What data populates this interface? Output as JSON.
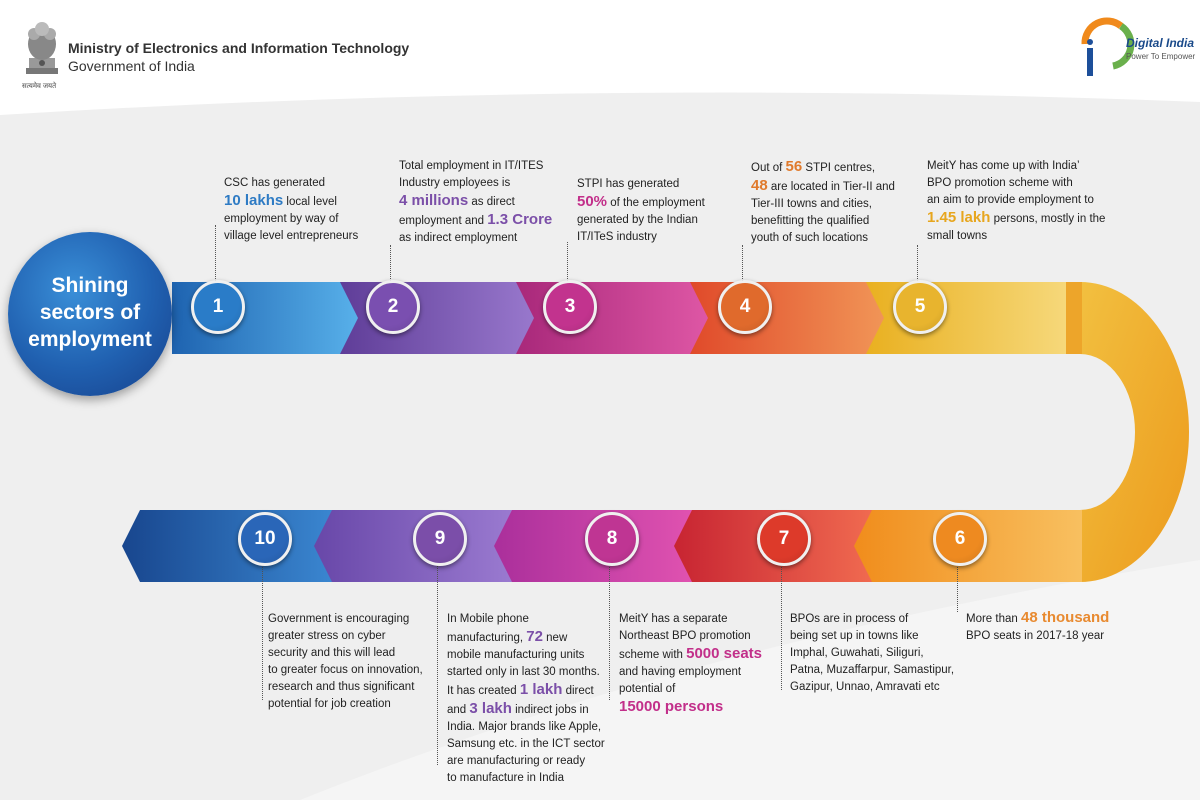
{
  "header": {
    "motto": "सत्यमेव जयते",
    "ministry": "Ministry of Electronics and Information Technology",
    "govt": "Government of India"
  },
  "logo": {
    "title": "Digital India",
    "tagline": "Power To Empower"
  },
  "hub": {
    "line1": "Shining",
    "line2": "sectors of",
    "line3": "employment"
  },
  "steps": [
    {
      "num": "1",
      "lines": [
        {
          "t": "CSC has generated"
        },
        {
          "p": [
            {
              "h": "10 lakhs"
            },
            {
              "t": " local level"
            }
          ]
        },
        {
          "t": "employment by way of"
        },
        {
          "t": "village level entrepreneurs"
        }
      ]
    },
    {
      "num": "2",
      "lines": [
        {
          "t": "Total employment in IT/ITES"
        },
        {
          "t": "Industry employees is"
        },
        {
          "p": [
            {
              "h": "4 millions"
            },
            {
              "t": " as direct"
            }
          ]
        },
        {
          "p": [
            {
              "t": "employment and "
            },
            {
              "h": "1.3 Crore"
            }
          ]
        },
        {
          "t": "as indirect employment"
        }
      ]
    },
    {
      "num": "3",
      "lines": [
        {
          "t": "STPI has generated"
        },
        {
          "p": [
            {
              "h": "50%"
            },
            {
              "t": " of the employment"
            }
          ]
        },
        {
          "t": "generated by the Indian"
        },
        {
          "t": "IT/ITeS industry"
        }
      ]
    },
    {
      "num": "4",
      "lines": [
        {
          "p": [
            {
              "t": "Out of "
            },
            {
              "h": "56"
            },
            {
              "t": " STPI centres,"
            }
          ]
        },
        {
          "p": [
            {
              "h": "48"
            },
            {
              "t": " are located in Tier-II and"
            }
          ]
        },
        {
          "t": "Tier-III towns and cities,"
        },
        {
          "t": "benefitting the qualified"
        },
        {
          "t": "youth of such locations"
        }
      ]
    },
    {
      "num": "5",
      "lines": [
        {
          "t": "MeitY has come up with India’"
        },
        {
          "t": "BPO promotion scheme with"
        },
        {
          "t": "an aim to provide employment to"
        },
        {
          "p": [
            {
              "h": "1.45 lakh"
            },
            {
              "t": " persons, mostly in the"
            }
          ]
        },
        {
          "t": "small towns"
        }
      ]
    },
    {
      "num": "6",
      "lines": [
        {
          "p": [
            {
              "t": "More than "
            },
            {
              "h": "48 thousand"
            }
          ]
        },
        {
          "t": "BPO seats in 2017-18 year"
        }
      ]
    },
    {
      "num": "7",
      "lines": [
        {
          "t": "BPOs are in process of"
        },
        {
          "t": "being set up in towns like"
        },
        {
          "t": "Imphal, Guwahati, Siliguri,"
        },
        {
          "t": "Patna, Muzaffarpur, Samastipur,"
        },
        {
          "t": "Gazipur, Unnao, Amravati etc"
        }
      ]
    },
    {
      "num": "8",
      "lines": [
        {
          "t": "MeitY has a separate"
        },
        {
          "t": "Northeast BPO promotion"
        },
        {
          "p": [
            {
              "t": "scheme with "
            },
            {
              "h": "5000 seats"
            }
          ]
        },
        {
          "t": "and having employment"
        },
        {
          "t": "potential of"
        },
        {
          "p": [
            {
              "h": "15000 persons"
            }
          ]
        }
      ]
    },
    {
      "num": "9",
      "lines": [
        {
          "t": "In Mobile phone"
        },
        {
          "p": [
            {
              "t": "manufacturing, "
            },
            {
              "h": "72"
            },
            {
              "t": " new"
            }
          ]
        },
        {
          "t": "mobile manufacturing units"
        },
        {
          "t": "started only in last 30 months."
        },
        {
          "p": [
            {
              "t": "It has created "
            },
            {
              "h": "1 lakh"
            },
            {
              "t": " direct"
            }
          ]
        },
        {
          "p": [
            {
              "t": "and "
            },
            {
              "h": "3 lakh"
            },
            {
              "t": " indirect jobs in"
            }
          ]
        },
        {
          "t": "India. Major brands like Apple,"
        },
        {
          "t": "Samsung etc. in the ICT sector"
        },
        {
          "t": "are manufacturing or ready"
        },
        {
          "t": "to manufacture in India"
        }
      ]
    },
    {
      "num": "10",
      "lines": [
        {
          "t": "Government is encouraging"
        },
        {
          "t": "greater stress on cyber"
        },
        {
          "t": "security and this will lead"
        },
        {
          "t": "to greater focus on innovation,"
        },
        {
          "t": "research and thus significant"
        },
        {
          "t": "potential for job creation"
        }
      ]
    }
  ],
  "colors": {
    "band": [
      "#2f8fd6",
      "#7a4fb0",
      "#c2338e",
      "#e0612c",
      "#e8b42e"
    ],
    "band_lower": [
      "#1f4f96",
      "#6d4aa8",
      "#b83091",
      "#d8362e",
      "#ee9d20"
    ],
    "num": [
      "#2a7cc8",
      "#7a4fb0",
      "#c2338e",
      "#e06a2c",
      "#e8b42e",
      "#ee8a20",
      "#dd3a2a",
      "#bf3593",
      "#7b4ea9",
      "#2a66b8"
    ],
    "highlight": [
      "#2e7bc4",
      "#7b4fa8",
      "#c22f8a",
      "#e07a2c",
      "#e7a61e",
      "#e88a30",
      "#c22f8a",
      "#c22f8a",
      "#7b4fa8",
      "#2e7bc4"
    ]
  }
}
